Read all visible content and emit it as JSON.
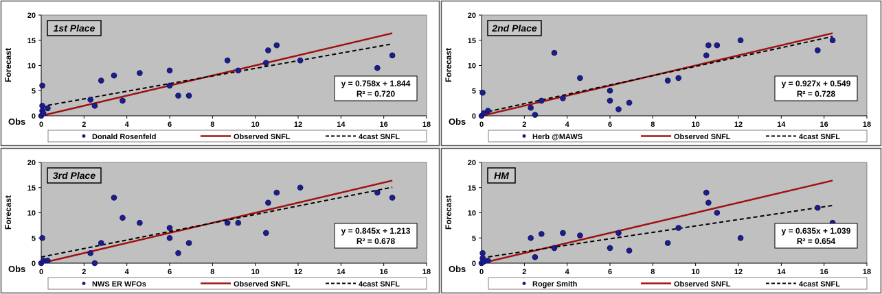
{
  "chart_data": [
    {
      "type": "scatter",
      "title": "1st Place",
      "xlabel": "Obs",
      "ylabel": "Forecast",
      "xlim": [
        0,
        18
      ],
      "ylim": [
        0,
        20
      ],
      "xticks": [
        "0",
        "2",
        "4",
        "6",
        "8",
        "10",
        "12",
        "14",
        "16",
        "18"
      ],
      "yticks": [
        "0",
        "5",
        "10",
        "15",
        "20"
      ],
      "grid": false,
      "legend_position": "bottom",
      "equation": "y = 0.758x + 1.844",
      "r_squared": "R² = 0.720",
      "points_series": "Donald Rosenfeld",
      "observed_series": "Observed SNFL",
      "forecast_series": "4cast SNFL",
      "fit": {
        "slope": 0.758,
        "intercept": 1.844
      },
      "points": [
        [
          0,
          0
        ],
        [
          0.05,
          1
        ],
        [
          0.05,
          2
        ],
        [
          0.05,
          6
        ],
        [
          0.1,
          0.5
        ],
        [
          0.3,
          1.5
        ],
        [
          2.3,
          3.2
        ],
        [
          2.5,
          2
        ],
        [
          2.8,
          7
        ],
        [
          3.4,
          8
        ],
        [
          3.8,
          3
        ],
        [
          4.6,
          8.5
        ],
        [
          6,
          6
        ],
        [
          6,
          9
        ],
        [
          6.4,
          4
        ],
        [
          6.9,
          4
        ],
        [
          8.7,
          11
        ],
        [
          9.2,
          9
        ],
        [
          10.5,
          10.5
        ],
        [
          10.6,
          13
        ],
        [
          11,
          14
        ],
        [
          12.1,
          11
        ],
        [
          15.7,
          9.5
        ],
        [
          16.4,
          12
        ]
      ]
    },
    {
      "type": "scatter",
      "title": "2nd Place",
      "xlabel": "Obs",
      "ylabel": "Forecast",
      "xlim": [
        0,
        18
      ],
      "ylim": [
        0,
        20
      ],
      "xticks": [
        "0",
        "2",
        "4",
        "6",
        "8",
        "10",
        "12",
        "14",
        "16",
        "18"
      ],
      "yticks": [
        "0",
        "5",
        "10",
        "15",
        "20"
      ],
      "grid": false,
      "legend_position": "bottom",
      "equation": "y = 0.927x + 0.549",
      "r_squared": "R² = 0.728",
      "points_series": "Herb @MAWS",
      "observed_series": "Observed SNFL",
      "forecast_series": "4cast SNFL",
      "fit": {
        "slope": 0.927,
        "intercept": 0.549
      },
      "points": [
        [
          0,
          0
        ],
        [
          0.05,
          4.6
        ],
        [
          0.1,
          0.5
        ],
        [
          0.3,
          1
        ],
        [
          2.3,
          1.6
        ],
        [
          2.5,
          0.2
        ],
        [
          2.8,
          3
        ],
        [
          3.4,
          12.5
        ],
        [
          3.8,
          3.5
        ],
        [
          4.6,
          7.5
        ],
        [
          6,
          3
        ],
        [
          6,
          5
        ],
        [
          6.4,
          1.3
        ],
        [
          6.9,
          2.6
        ],
        [
          8.7,
          7
        ],
        [
          9.2,
          7.5
        ],
        [
          10.5,
          12
        ],
        [
          10.6,
          14
        ],
        [
          11,
          14
        ],
        [
          12.1,
          15
        ],
        [
          15.7,
          13
        ],
        [
          16.4,
          15
        ]
      ]
    },
    {
      "type": "scatter",
      "title": "3rd Place",
      "xlabel": "Obs",
      "ylabel": "Forecast",
      "xlim": [
        0,
        18
      ],
      "ylim": [
        0,
        20
      ],
      "xticks": [
        "0",
        "2",
        "4",
        "6",
        "8",
        "10",
        "12",
        "14",
        "16",
        "18"
      ],
      "yticks": [
        "0",
        "5",
        "10",
        "15",
        "20"
      ],
      "grid": false,
      "legend_position": "bottom",
      "equation": "y = 0.845x + 1.213",
      "r_squared": "R² = 0.678",
      "points_series": "NWS ER WFOs",
      "observed_series": "Observed SNFL",
      "forecast_series": "4cast SNFL",
      "fit": {
        "slope": 0.845,
        "intercept": 1.213
      },
      "points": [
        [
          0,
          0
        ],
        [
          0.05,
          5
        ],
        [
          0.1,
          0.5
        ],
        [
          0.3,
          0.5
        ],
        [
          2.3,
          2
        ],
        [
          2.5,
          0
        ],
        [
          2.8,
          4
        ],
        [
          3.4,
          13
        ],
        [
          3.8,
          9
        ],
        [
          4.6,
          8
        ],
        [
          6,
          5
        ],
        [
          6,
          7
        ],
        [
          6.4,
          2
        ],
        [
          6.9,
          4
        ],
        [
          8.7,
          8
        ],
        [
          9.2,
          8
        ],
        [
          10.5,
          6
        ],
        [
          10.6,
          12
        ],
        [
          11,
          14
        ],
        [
          12.1,
          15
        ],
        [
          15.7,
          14
        ],
        [
          16.4,
          13
        ]
      ]
    },
    {
      "type": "scatter",
      "title": "HM",
      "xlabel": "Obs",
      "ylabel": "Forecast",
      "xlim": [
        0,
        18
      ],
      "ylim": [
        0,
        20
      ],
      "xticks": [
        "0",
        "2",
        "4",
        "6",
        "8",
        "10",
        "12",
        "14",
        "16",
        "18"
      ],
      "yticks": [
        "0",
        "5",
        "10",
        "15",
        "20"
      ],
      "grid": false,
      "legend_position": "bottom",
      "equation": "y = 0.635x + 1.039",
      "r_squared": "R² = 0.654",
      "points_series": "Roger Smith",
      "observed_series": "Observed SNFL",
      "forecast_series": "4cast SNFL",
      "fit": {
        "slope": 0.635,
        "intercept": 1.039
      },
      "points": [
        [
          0,
          0
        ],
        [
          0.05,
          1
        ],
        [
          0.05,
          2
        ],
        [
          0.1,
          0.3
        ],
        [
          0.3,
          0.5
        ],
        [
          2.3,
          5
        ],
        [
          2.5,
          1.2
        ],
        [
          2.8,
          5.8
        ],
        [
          3.4,
          3
        ],
        [
          3.8,
          6
        ],
        [
          4.6,
          5.5
        ],
        [
          6,
          3
        ],
        [
          6.4,
          6
        ],
        [
          6.9,
          2.5
        ],
        [
          8.7,
          4
        ],
        [
          9.2,
          7
        ],
        [
          10.5,
          14
        ],
        [
          10.6,
          12
        ],
        [
          11,
          10
        ],
        [
          12.1,
          5
        ],
        [
          15.7,
          11
        ],
        [
          16.4,
          8
        ]
      ]
    }
  ],
  "colors": {
    "plot_bg": "#c0c0c0",
    "marker": "#1c1c8c",
    "observed_line": "#a01010",
    "forecast_line": "#000000",
    "title_box": "#c8c8c8"
  }
}
